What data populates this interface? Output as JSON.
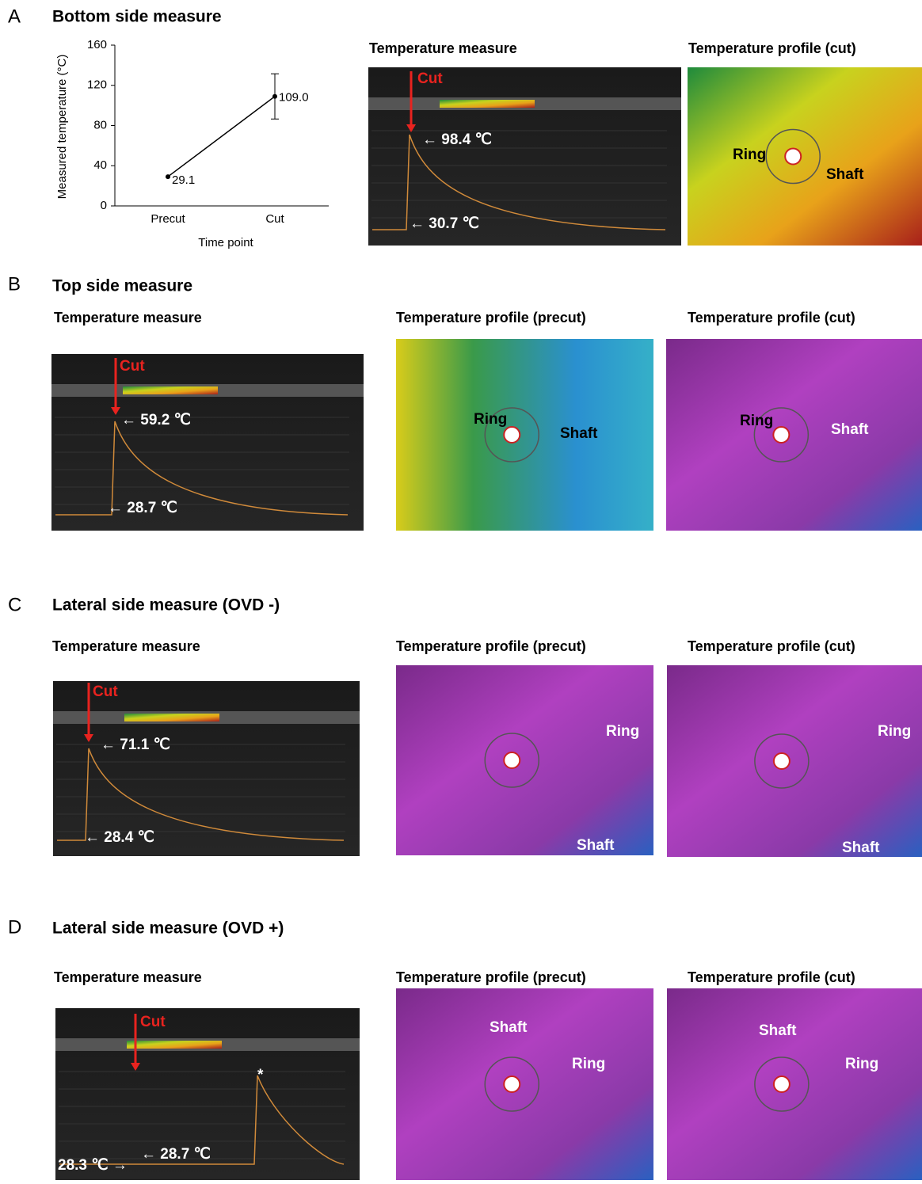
{
  "panels": [
    {
      "letter": "A",
      "title": "Bottom side measure",
      "images": [
        {
          "caption": "Temperature measure",
          "annotations": [
            "Cut",
            "← 98.4 ℃",
            "← 30.7 ℃"
          ]
        },
        {
          "caption": "Temperature profile (cut)",
          "annotations": [
            "Ring",
            "Shaft"
          ]
        }
      ]
    },
    {
      "letter": "B",
      "title": "Top side measure",
      "images": [
        {
          "caption": "Temperature measure",
          "annotations": [
            "Cut",
            "← 59.2 ℃",
            "← 28.7 ℃"
          ]
        },
        {
          "caption": "Temperature profile (precut)",
          "annotations": [
            "Ring",
            "Shaft"
          ]
        },
        {
          "caption": "Temperature profile (cut)",
          "annotations": [
            "Ring",
            "Shaft"
          ]
        }
      ]
    },
    {
      "letter": "C",
      "title": "Lateral side measure (OVD -)",
      "images": [
        {
          "caption": "Temperature measure",
          "annotations": [
            "Cut",
            "← 71.1 ℃",
            "← 28.4 ℃"
          ]
        },
        {
          "caption": "Temperature profile (precut)",
          "annotations": [
            "Ring",
            "Shaft"
          ]
        },
        {
          "caption": "Temperature profile (cut)",
          "annotations": [
            "Ring",
            "Shaft"
          ]
        }
      ]
    },
    {
      "letter": "D",
      "title": "Lateral side measure (OVD +)",
      "images": [
        {
          "caption": "Temperature measure",
          "annotations": [
            "Cut",
            "28.3 ℃ →",
            "← 28.7 ℃",
            "*"
          ]
        },
        {
          "caption": "Temperature profile (precut)",
          "annotations": [
            "Shaft",
            "Ring"
          ]
        },
        {
          "caption": "Temperature profile (cut)",
          "annotations": [
            "Shaft",
            "Ring"
          ]
        }
      ]
    }
  ],
  "chart_data": {
    "type": "line",
    "xlabel": "Time point",
    "ylabel": "Measured temperature (°C)",
    "categories": [
      "Precut",
      "Cut"
    ],
    "series": [
      {
        "values": [
          29.1,
          109.0
        ],
        "value_labels": [
          "29.1",
          "109.0"
        ],
        "errors": [
          null,
          22.5
        ],
        "color": "#000000"
      }
    ],
    "ylim": [
      0,
      160
    ],
    "yticks": [
      0,
      40,
      80,
      120,
      160
    ]
  }
}
